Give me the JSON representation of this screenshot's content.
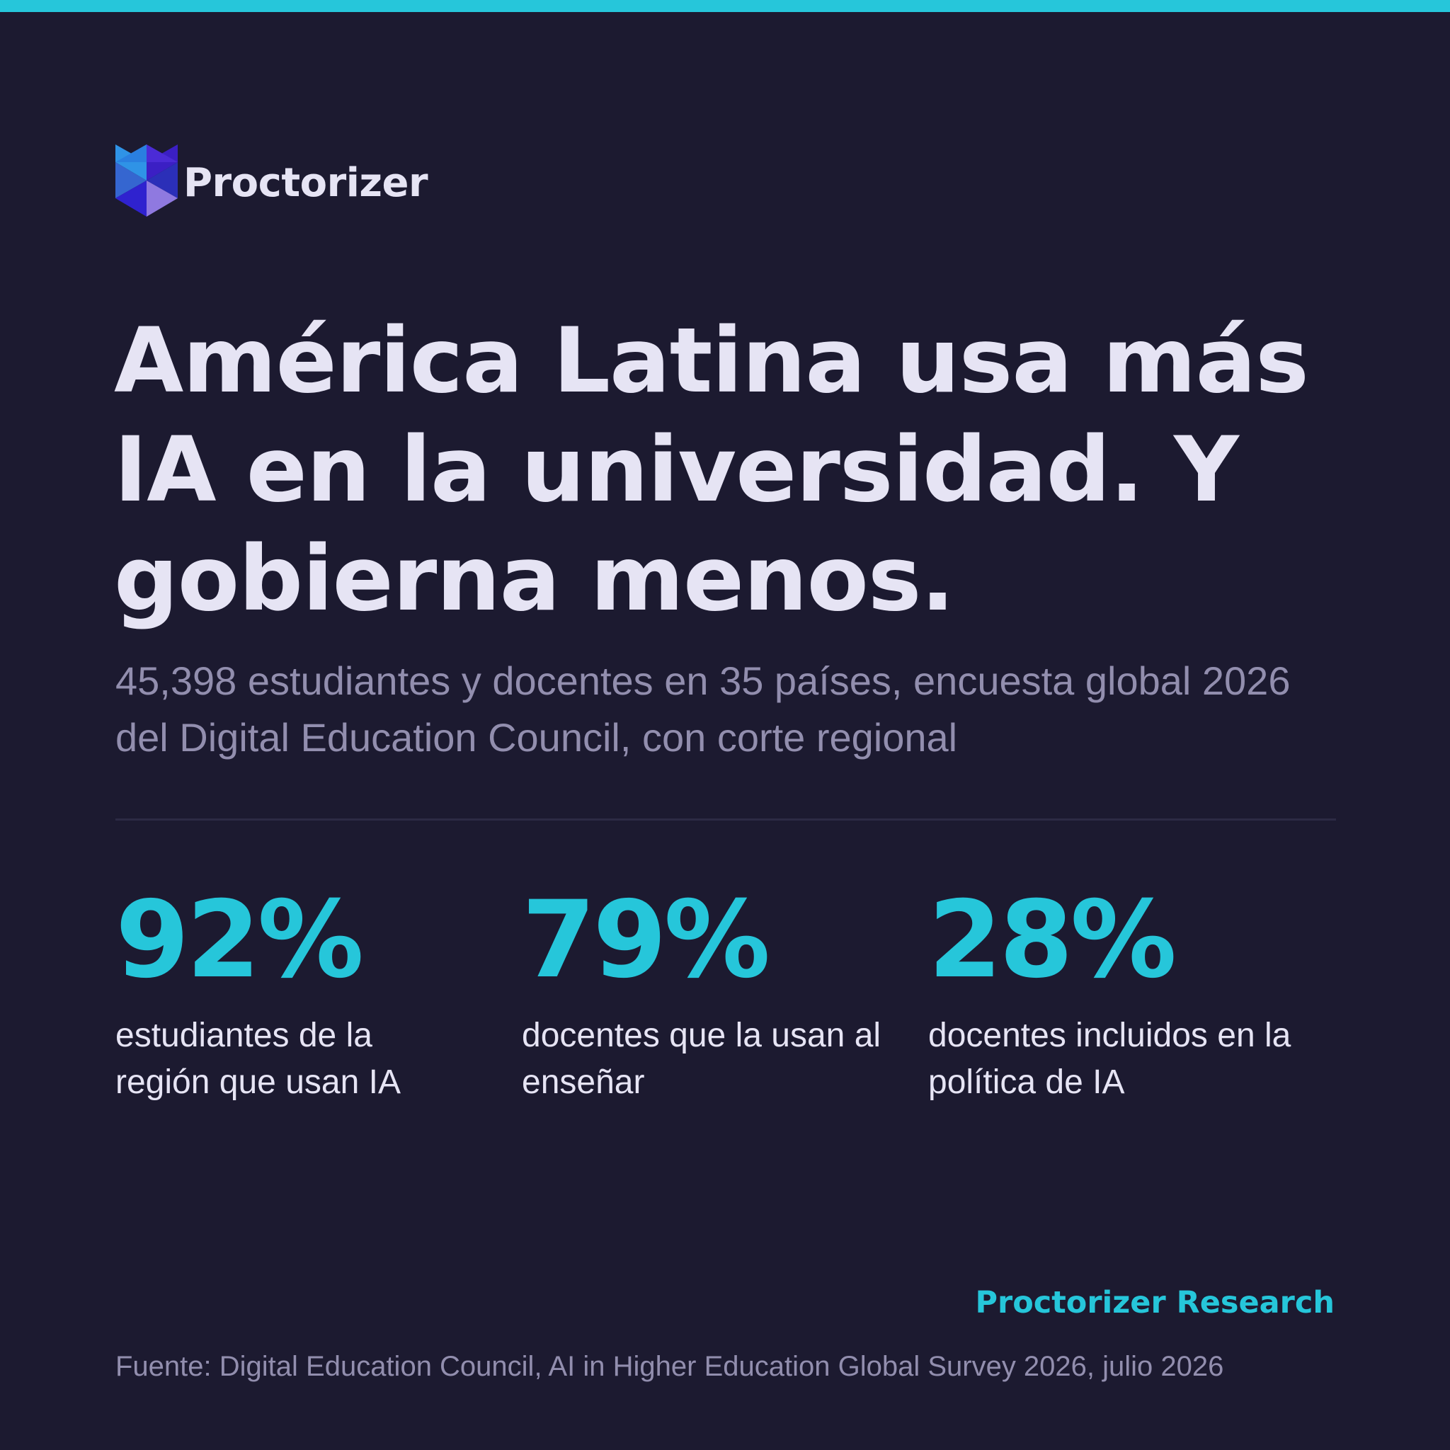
{
  "colors": {
    "background": "#1c1a30",
    "accent": "#26c6da",
    "text_primary": "#e6e4f4",
    "text_muted": "#928eae",
    "divider": "#2c2a44"
  },
  "brand": {
    "logo_icon": "hexagon-cube-icon",
    "name": "Proctorizer"
  },
  "headline": "América Latina usa más IA en la universidad. Y gobierna menos.",
  "subtitle": "45,398 estudiantes y docentes en 35 países, encuesta global 2026 del Digital Education Council, con corte regional",
  "stats": [
    {
      "value": "92%",
      "label": "estudiantes de la región que usan IA"
    },
    {
      "value": "79%",
      "label": "docentes que la usan al enseñar"
    },
    {
      "value": "28%",
      "label": "docentes incluidos en la política de IA"
    }
  ],
  "footer": {
    "research_label": "Proctorizer Research",
    "source": "Fuente: Digital Education Council, AI in Higher Education Global Survey 2026, julio 2026"
  }
}
